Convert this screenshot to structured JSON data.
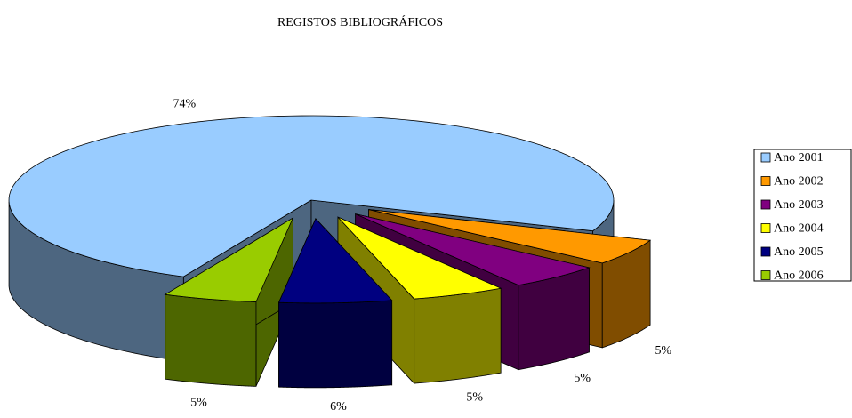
{
  "chart_data": {
    "type": "pie3d",
    "title": "REGISTOS BIBLIOGRÁFICOS",
    "categories": [
      "Ano 2001",
      "Ano 2002",
      "Ano 2003",
      "Ano 2004",
      "Ano 2005",
      "Ano 2006"
    ],
    "values": [
      74,
      5,
      5,
      5,
      6,
      5
    ],
    "value_labels": [
      "74%",
      "5%",
      "5%",
      "5%",
      "6%",
      "5%"
    ],
    "colors": [
      "#99ccff",
      "#ff9900",
      "#800080",
      "#ffff00",
      "#000080",
      "#99cc00"
    ],
    "legend": "right"
  }
}
